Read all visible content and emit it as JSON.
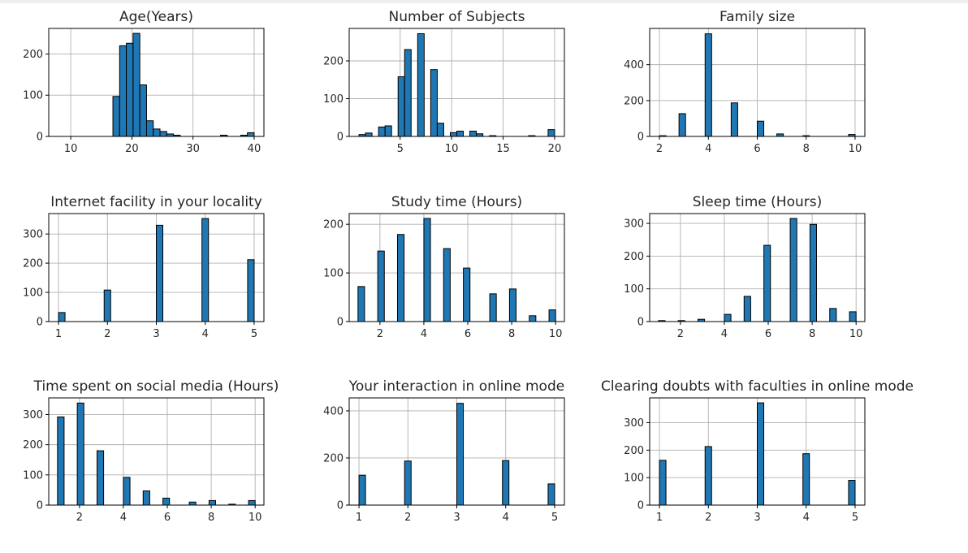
{
  "colors": {
    "bar_fill": "#1f77b4",
    "bar_edge": "#000000",
    "grid": "#b0b0b0",
    "axes": "#000000",
    "background": "#ffffff"
  },
  "chart_data": [
    {
      "type": "bar",
      "title": "Age(Years)",
      "grid": true,
      "xlim": [
        6.4,
        41.6
      ],
      "ylim": [
        0,
        262
      ],
      "xticks": [
        10,
        20,
        30,
        40
      ],
      "yticks": [
        0,
        100,
        200
      ],
      "bin_width": 1.1,
      "x": [
        7.0,
        8.1,
        9.2,
        10.3,
        11.4,
        12.5,
        13.6,
        14.7,
        15.8,
        16.9,
        18.0,
        19.1,
        20.2,
        21.3,
        22.4,
        23.5,
        24.6,
        25.7,
        26.8,
        27.9,
        29.0,
        30.1,
        31.2,
        32.3,
        33.4,
        34.5,
        35.6,
        36.7,
        37.8,
        38.9
      ],
      "values": [
        0,
        0,
        0,
        0,
        0,
        0,
        0,
        0,
        0,
        97,
        220,
        226,
        250,
        125,
        38,
        18,
        12,
        6,
        3,
        0,
        0,
        0,
        0,
        0,
        0,
        3,
        0,
        0,
        3,
        9
      ]
    },
    {
      "type": "bar",
      "title": "Number of Subjects",
      "grid": true,
      "xlim": [
        0.05,
        20.95
      ],
      "ylim": [
        0,
        286
      ],
      "xticks": [
        5,
        10,
        15,
        20
      ],
      "yticks": [
        0,
        100,
        200
      ],
      "bin_width": 0.633,
      "x": [
        1.0,
        1.633,
        2.267,
        2.9,
        3.533,
        4.167,
        4.8,
        5.433,
        6.067,
        6.7,
        7.333,
        7.967,
        8.6,
        9.233,
        9.867,
        10.5,
        11.133,
        11.767,
        12.4,
        13.033,
        13.667,
        14.3,
        14.933,
        15.567,
        16.2,
        16.833,
        17.467,
        18.1,
        18.733,
        19.367
      ],
      "values": [
        5,
        9,
        0,
        25,
        28,
        0,
        158,
        230,
        0,
        272,
        0,
        177,
        35,
        0,
        10,
        14,
        0,
        14,
        7,
        0,
        2,
        0,
        0,
        0,
        0,
        0,
        2,
        0,
        0,
        18
      ]
    },
    {
      "type": "bar",
      "title": "Family size",
      "grid": true,
      "xlim": [
        1.6,
        10.4
      ],
      "ylim": [
        0,
        602
      ],
      "xticks": [
        2,
        4,
        6,
        8,
        10
      ],
      "yticks": [
        0,
        200,
        400
      ],
      "bin_width": 0.267,
      "x": [
        2.0,
        2.267,
        2.533,
        2.8,
        3.067,
        3.333,
        3.6,
        3.867,
        4.133,
        4.4,
        4.667,
        4.933,
        5.2,
        5.467,
        5.733,
        6.0,
        6.267,
        6.533,
        6.8,
        7.067,
        7.333,
        7.6,
        7.867,
        8.133,
        8.4,
        8.667,
        8.933,
        9.2,
        9.467,
        9.733
      ],
      "values": [
        4,
        0,
        0,
        127,
        0,
        0,
        0,
        572,
        0,
        0,
        0,
        187,
        0,
        0,
        0,
        85,
        0,
        0,
        14,
        0,
        0,
        0,
        4,
        0,
        0,
        0,
        0,
        0,
        0,
        11
      ]
    },
    {
      "type": "bar",
      "title": "Internet facility in your locality",
      "grid": true,
      "xlim": [
        0.8,
        5.2
      ],
      "ylim": [
        0,
        370
      ],
      "xticks": [
        1,
        2,
        3,
        4,
        5
      ],
      "yticks": [
        0,
        100,
        200,
        300
      ],
      "bin_width": 0.1333,
      "x": [
        1.0,
        1.133,
        1.267,
        1.4,
        1.533,
        1.667,
        1.8,
        1.933,
        2.067,
        2.2,
        2.333,
        2.467,
        2.6,
        2.733,
        2.867,
        3.0,
        3.133,
        3.267,
        3.4,
        3.533,
        3.667,
        3.8,
        3.933,
        4.067,
        4.2,
        4.333,
        4.467,
        4.6,
        4.733,
        4.867
      ],
      "values": [
        31,
        0,
        0,
        0,
        0,
        0,
        0,
        108,
        0,
        0,
        0,
        0,
        0,
        0,
        0,
        330,
        0,
        0,
        0,
        0,
        0,
        0,
        353,
        0,
        0,
        0,
        0,
        0,
        0,
        212
      ]
    },
    {
      "type": "bar",
      "title": "Study time (Hours)",
      "grid": true,
      "xlim": [
        0.6,
        10.4
      ],
      "ylim": [
        0,
        222
      ],
      "xticks": [
        2,
        4,
        6,
        8,
        10
      ],
      "yticks": [
        0,
        100,
        200
      ],
      "bin_width": 0.3,
      "x": [
        1.0,
        1.3,
        1.6,
        1.9,
        2.2,
        2.5,
        2.8,
        3.1,
        3.4,
        3.7,
        4.0,
        4.3,
        4.6,
        4.9,
        5.2,
        5.5,
        5.8,
        6.1,
        6.4,
        6.7,
        7.0,
        7.3,
        7.6,
        7.9,
        8.2,
        8.5,
        8.8,
        9.1,
        9.4,
        9.7
      ],
      "values": [
        72,
        0,
        0,
        145,
        0,
        0,
        179,
        0,
        0,
        0,
        212,
        0,
        0,
        150,
        0,
        0,
        110,
        0,
        0,
        0,
        57,
        0,
        0,
        67,
        0,
        0,
        12,
        0,
        0,
        24
      ]
    },
    {
      "type": "bar",
      "title": "Sleep time (Hours)",
      "grid": true,
      "xlim": [
        0.6,
        10.4
      ],
      "ylim": [
        0,
        330
      ],
      "xticks": [
        2,
        4,
        6,
        8,
        10
      ],
      "yticks": [
        0,
        100,
        200,
        300
      ],
      "bin_width": 0.3,
      "x": [
        1.0,
        1.3,
        1.6,
        1.9,
        2.2,
        2.5,
        2.8,
        3.1,
        3.4,
        3.7,
        4.0,
        4.3,
        4.6,
        4.9,
        5.2,
        5.5,
        5.8,
        6.1,
        6.4,
        6.7,
        7.0,
        7.3,
        7.6,
        7.9,
        8.2,
        8.5,
        8.8,
        9.1,
        9.4,
        9.7
      ],
      "values": [
        3,
        0,
        0,
        3,
        0,
        0,
        7,
        0,
        0,
        0,
        22,
        0,
        0,
        77,
        0,
        0,
        233,
        0,
        0,
        0,
        315,
        0,
        0,
        297,
        0,
        0,
        40,
        0,
        0,
        30
      ]
    },
    {
      "type": "bar",
      "title": "Time spent on social media (Hours)",
      "grid": true,
      "xlim": [
        0.6,
        10.4
      ],
      "ylim": [
        0,
        355
      ],
      "xticks": [
        2,
        4,
        6,
        8,
        10
      ],
      "yticks": [
        0,
        100,
        200,
        300
      ],
      "bin_width": 0.3,
      "x": [
        1.0,
        1.3,
        1.6,
        1.9,
        2.2,
        2.5,
        2.8,
        3.1,
        3.4,
        3.7,
        4.0,
        4.3,
        4.6,
        4.9,
        5.2,
        5.5,
        5.8,
        6.1,
        6.4,
        6.7,
        7.0,
        7.3,
        7.6,
        7.9,
        8.2,
        8.5,
        8.8,
        9.1,
        9.4,
        9.7
      ],
      "values": [
        292,
        0,
        0,
        338,
        0,
        0,
        180,
        0,
        0,
        0,
        92,
        0,
        0,
        47,
        0,
        0,
        23,
        0,
        0,
        0,
        10,
        0,
        0,
        15,
        0,
        0,
        3,
        0,
        0,
        15
      ]
    },
    {
      "type": "bar",
      "title": "Your interaction in online mode",
      "grid": true,
      "xlim": [
        0.8,
        5.2
      ],
      "ylim": [
        0,
        455
      ],
      "xticks": [
        1,
        2,
        3,
        4,
        5
      ],
      "yticks": [
        0,
        200,
        400
      ],
      "bin_width": 0.1333,
      "x": [
        1.0,
        1.133,
        1.267,
        1.4,
        1.533,
        1.667,
        1.8,
        1.933,
        2.067,
        2.2,
        2.333,
        2.467,
        2.6,
        2.733,
        2.867,
        3.0,
        3.133,
        3.267,
        3.4,
        3.533,
        3.667,
        3.8,
        3.933,
        4.067,
        4.2,
        4.333,
        4.467,
        4.6,
        4.733,
        4.867
      ],
      "values": [
        127,
        0,
        0,
        0,
        0,
        0,
        0,
        187,
        0,
        0,
        0,
        0,
        0,
        0,
        0,
        432,
        0,
        0,
        0,
        0,
        0,
        0,
        189,
        0,
        0,
        0,
        0,
        0,
        0,
        90
      ]
    },
    {
      "type": "bar",
      "title": "Clearing doubts with faculties in online mode",
      "grid": true,
      "xlim": [
        0.8,
        5.2
      ],
      "ylim": [
        0,
        390
      ],
      "xticks": [
        1,
        2,
        3,
        4,
        5
      ],
      "yticks": [
        0,
        100,
        200,
        300
      ],
      "bin_width": 0.1333,
      "x": [
        1.0,
        1.133,
        1.267,
        1.4,
        1.533,
        1.667,
        1.8,
        1.933,
        2.067,
        2.2,
        2.333,
        2.467,
        2.6,
        2.733,
        2.867,
        3.0,
        3.133,
        3.267,
        3.4,
        3.533,
        3.667,
        3.8,
        3.933,
        4.067,
        4.2,
        4.333,
        4.467,
        4.6,
        4.733,
        4.867
      ],
      "values": [
        163,
        0,
        0,
        0,
        0,
        0,
        0,
        213,
        0,
        0,
        0,
        0,
        0,
        0,
        0,
        372,
        0,
        0,
        0,
        0,
        0,
        0,
        187,
        0,
        0,
        0,
        0,
        0,
        0,
        90
      ]
    }
  ]
}
